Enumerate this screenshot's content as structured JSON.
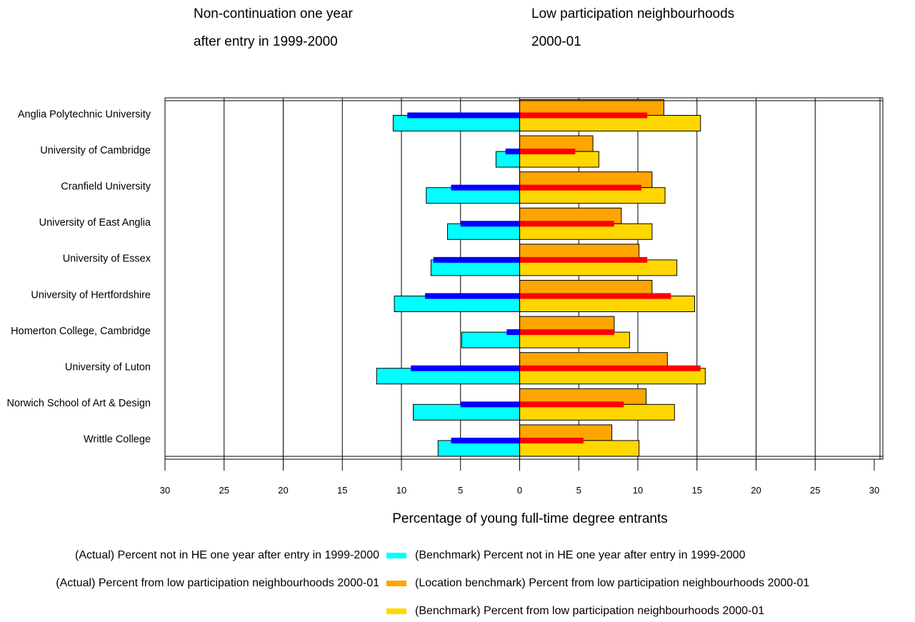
{
  "chart_data": {
    "type": "bar",
    "orientation": "horizontal",
    "layout": "butterfly",
    "headings": {
      "left": [
        "Non-continuation one year",
        "after entry in 1999-2000"
      ],
      "right": [
        "Low participation neighbourhoods",
        "2000-01"
      ]
    },
    "xlabel": "Percentage of young full-time degree entrants",
    "xlim": [
      -30,
      30
    ],
    "x_ticks": [
      "30",
      "25",
      "20",
      "15",
      "10",
      "5",
      "0",
      "5",
      "10",
      "15",
      "20",
      "25",
      "30"
    ],
    "grid": true,
    "legend_position": "bottom",
    "categories": [
      "Anglia Polytechnic University",
      "University of Cambridge",
      "Cranfield University",
      "University of East Anglia",
      "University of Essex",
      "University of Hertfordshire",
      "Homerton College, Cambridge",
      "University of Luton",
      "Norwich School of Art & Design",
      "Writtle College"
    ],
    "series": [
      {
        "key": "nc_actual",
        "name": "(Actual) Percent not in HE one year after entry in 1999-2000",
        "color": "#0000ff",
        "side": "left",
        "style": "thin",
        "values": [
          9.5,
          1.2,
          5.8,
          5.0,
          7.3,
          8.0,
          1.1,
          9.2,
          5.0,
          5.8
        ]
      },
      {
        "key": "nc_bench",
        "name": "(Benchmark) Percent not in HE one year after entry in 1999-2000",
        "color": "#00ffff",
        "side": "left",
        "style": "lower",
        "values": [
          10.7,
          2.0,
          7.9,
          6.1,
          7.5,
          10.6,
          4.9,
          12.1,
          9.0,
          6.9
        ]
      },
      {
        "key": "lpn_actual",
        "name": "(Actual) Percent from low participation neighbourhoods 2000-01",
        "color": "#ff0000",
        "side": "right",
        "style": "thin",
        "values": [
          10.8,
          4.7,
          10.3,
          8.0,
          10.8,
          12.8,
          8.0,
          15.3,
          8.8,
          5.4
        ]
      },
      {
        "key": "lpn_loc",
        "name": "(Location benchmark) Percent from low participation neighbourhoods 2000-01",
        "color": "#ffa500",
        "side": "right",
        "style": "upper",
        "values": [
          12.2,
          6.2,
          11.2,
          8.6,
          10.1,
          11.2,
          8.0,
          12.5,
          10.7,
          7.8
        ]
      },
      {
        "key": "lpn_bench",
        "name": "(Benchmark) Percent from low participation neighbourhoods 2000-01",
        "color": "#ffd700",
        "side": "right",
        "style": "lower",
        "values": [
          15.3,
          6.7,
          12.3,
          11.2,
          13.3,
          14.8,
          9.3,
          15.7,
          13.1,
          10.1
        ]
      }
    ]
  }
}
